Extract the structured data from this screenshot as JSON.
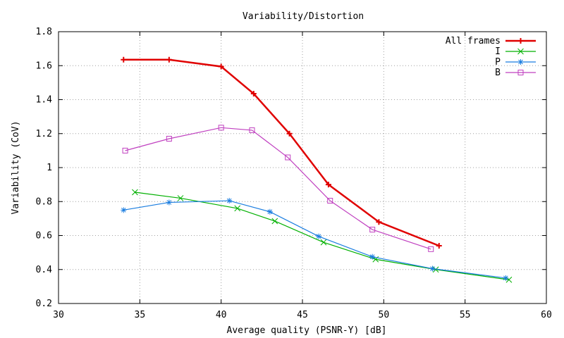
{
  "chart_data": {
    "type": "line",
    "title": "Variability/Distortion",
    "xlabel": "Average quality (PSNR-Y) [dB]",
    "ylabel": "Variability (CoV)",
    "xlim": [
      30,
      60
    ],
    "ylim": [
      0.2,
      1.8
    ],
    "x_ticks": [
      30,
      35,
      40,
      45,
      50,
      55,
      60
    ],
    "y_ticks": [
      0.2,
      0.4,
      0.6,
      0.8,
      1,
      1.2,
      1.4,
      1.6,
      1.8
    ],
    "grid": true,
    "legend_position": "top-right",
    "series": [
      {
        "name": "All frames",
        "color": "#e00000",
        "marker": "plus",
        "x": [
          34.0,
          36.8,
          40.0,
          42.0,
          44.2,
          46.6,
          49.7,
          53.4
        ],
        "y": [
          1.635,
          1.635,
          1.595,
          1.435,
          1.2,
          0.9,
          0.68,
          0.54
        ]
      },
      {
        "name": "I",
        "color": "#00b000",
        "marker": "x",
        "x": [
          34.7,
          37.5,
          41.0,
          43.3,
          46.3,
          49.5,
          53.2,
          57.7
        ],
        "y": [
          0.855,
          0.82,
          0.76,
          0.685,
          0.56,
          0.46,
          0.4,
          0.34
        ]
      },
      {
        "name": "P",
        "color": "#1a7de0",
        "marker": "asterisk",
        "x": [
          34.0,
          36.8,
          40.5,
          43.0,
          46.0,
          49.3,
          53.0,
          57.5
        ],
        "y": [
          0.75,
          0.795,
          0.805,
          0.74,
          0.595,
          0.475,
          0.405,
          0.35
        ]
      },
      {
        "name": "B",
        "color": "#c040c0",
        "marker": "square",
        "x": [
          34.1,
          36.8,
          40.0,
          41.9,
          44.1,
          46.7,
          49.3,
          52.9
        ],
        "y": [
          1.1,
          1.17,
          1.235,
          1.22,
          1.06,
          0.805,
          0.635,
          0.52
        ]
      }
    ]
  }
}
